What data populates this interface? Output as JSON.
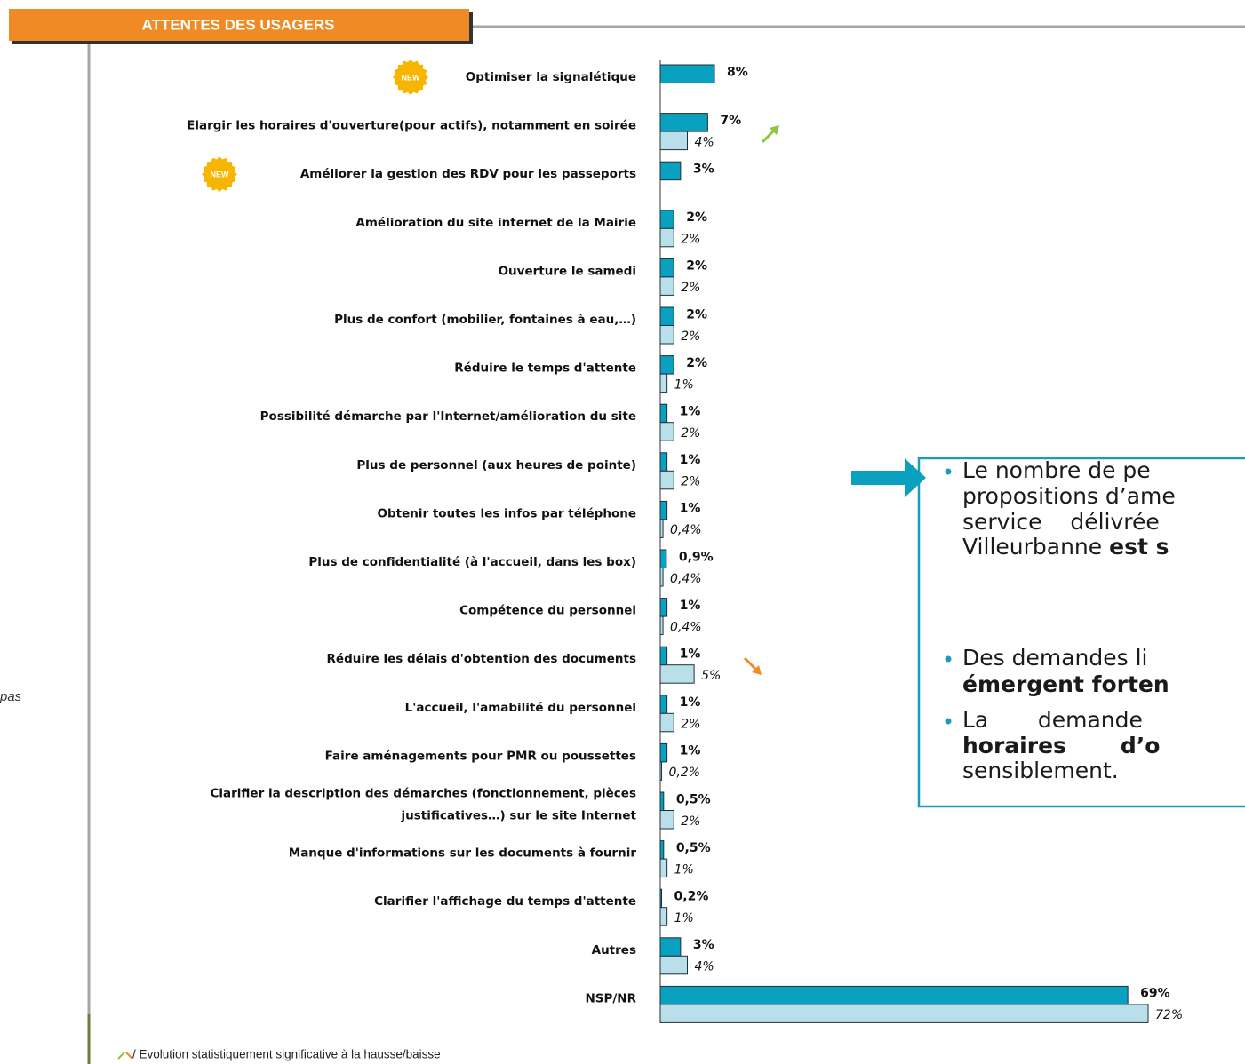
{
  "header": {
    "title": "ATTENTES DES USAGERS"
  },
  "side_fragment": "pas",
  "badge": "NEW",
  "footnote": "/ Evolution statistiquement significative à la hausse/baisse",
  "callout": {
    "bullets": [
      [
        [
          {
            "text": "Le nombre de pe",
            "bold": false
          }
        ],
        [
          {
            "text": "propositions d’ame",
            "bold": false
          }
        ],
        [
          {
            "text": "service    délivrée",
            "bold": false
          }
        ],
        [
          {
            "text": "Villeurbanne ",
            "bold": false
          },
          {
            "text": "est s",
            "bold": true
          }
        ]
      ],
      [
        [
          {
            "text": "Des demandes li",
            "bold": false
          }
        ],
        [
          {
            "text": "émergent forten",
            "bold": true
          }
        ]
      ],
      [
        [
          {
            "text": "La       demande",
            "bold": false
          }
        ],
        [
          {
            "text": "horaires       d’o",
            "bold": true
          }
        ],
        [
          {
            "text": "sensiblement.",
            "bold": false
          }
        ]
      ]
    ]
  },
  "chart_data": {
    "type": "bar",
    "orientation": "horizontal",
    "categories": [
      "Optimiser la signalétique",
      "Elargir les horaires d'ouverture(pour actifs), notamment en soirée",
      "Améliorer la gestion des RDV pour les passeports",
      "Amélioration du site internet de la Mairie",
      "Ouverture le samedi",
      "Plus de confort (mobilier, fontaines à eau,…)",
      "Réduire le temps d'attente",
      "Possibilité démarche par l'Internet/amélioration du site",
      "Plus de personnel (aux heures de pointe)",
      "Obtenir toutes les infos par téléphone",
      "Plus de confidentialité (à l'accueil, dans les box)",
      "Compétence du personnel",
      "Réduire les délais d'obtention des documents",
      "L'accueil, l'amabilité du personnel",
      "Faire aménagements pour PMR ou poussettes",
      "Clarifier la description des démarches (fonctionnement, pièces\njustificatives…) sur le site Internet",
      "Manque d'informations sur les documents à fournir",
      "Clarifier l'affichage du temps d'attente",
      "Autres",
      "NSP/NR"
    ],
    "series": [
      {
        "color": "#0aa0c0",
        "values": [
          8,
          7,
          3,
          2,
          2,
          2,
          2,
          1,
          1,
          1,
          0.9,
          1,
          1,
          1,
          1,
          0.5,
          0.5,
          0.2,
          3,
          69
        ],
        "value_labels": [
          "8%",
          "7%",
          "3%",
          "2%",
          "2%",
          "2%",
          "2%",
          "1%",
          "1%",
          "1%",
          "0,9%",
          "1%",
          "1%",
          "1%",
          "1%",
          "0,5%",
          "0,5%",
          "0,2%",
          "3%",
          "69%"
        ]
      },
      {
        "color": "#b9e0ea",
        "values": [
          null,
          4,
          null,
          2,
          2,
          2,
          1,
          2,
          2,
          0.4,
          0.4,
          0.4,
          5,
          2,
          0.2,
          2,
          1,
          1,
          4,
          72
        ],
        "value_labels": [
          null,
          "4%",
          null,
          "2%",
          "2%",
          "2%",
          "1%",
          "2%",
          "2%",
          "0,4%",
          "0,4%",
          "0,4%",
          "5%",
          "2%",
          "0,2%",
          "2%",
          "1%",
          "1%",
          "4%",
          "72%"
        ]
      }
    ],
    "xlim": [
      0,
      72
    ]
  }
}
